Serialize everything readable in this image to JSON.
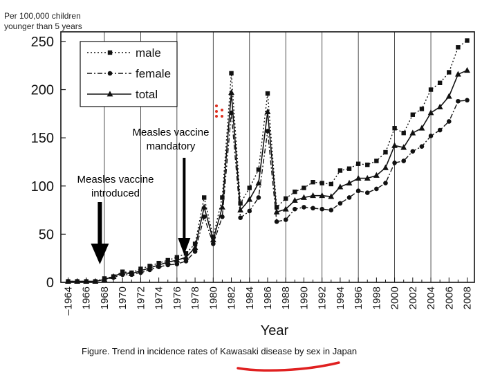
{
  "page": {
    "y_units_label": "Per 100,000 children\nyounger than 5 years",
    "caption": "Figure.   Trend in incidence rates of Kawasaki disease by sex in Japan",
    "annotations": [
      {
        "id": "mandatory",
        "text": "Measles vaccine\nmandatory",
        "arrow_year": 1976.8
      },
      {
        "id": "introduced",
        "text": "Measles vaccine\nintroduced",
        "arrow_year": 1967.5
      }
    ],
    "accent_color": "#e03020"
  },
  "chart_data": {
    "type": "line",
    "title": "",
    "xlabel": "Year",
    "ylabel": "Per 100,000 children younger than 5 years",
    "xlim": [
      1963.2,
      2008.8
    ],
    "ylim": [
      0,
      260
    ],
    "yticks": [
      0,
      50,
      100,
      150,
      200,
      250
    ],
    "xtick_labels": [
      "1964",
      "1966",
      "1968",
      "1970",
      "1972",
      "1974",
      "1976",
      "1978",
      "1980",
      "1982",
      "1984",
      "1986",
      "1988",
      "1990",
      "1992",
      "1994",
      "1996",
      "1998",
      "2000",
      "2002",
      "2004",
      "2006",
      "2008"
    ],
    "legend": "top-left",
    "x": [
      1964,
      1965,
      1966,
      1967,
      1968,
      1969,
      1970,
      1971,
      1972,
      1973,
      1974,
      1975,
      1976,
      1977,
      1978,
      1979,
      1980,
      1981,
      1982,
      1983,
      1984,
      1985,
      1986,
      1987,
      1988,
      1989,
      1990,
      1991,
      1992,
      1993,
      1994,
      1995,
      1996,
      1997,
      1998,
      1999,
      2000,
      2001,
      2002,
      2003,
      2004,
      2005,
      2006,
      2007,
      2008
    ],
    "series": [
      {
        "name": "male",
        "style": "dotted",
        "marker": "square",
        "values": [
          1,
          1,
          1,
          1,
          4,
          6,
          11,
          10,
          14,
          17,
          20,
          23,
          26,
          30,
          40,
          88,
          47,
          88,
          217,
          82,
          98,
          117,
          196,
          78,
          87,
          94,
          98,
          104,
          103,
          102,
          116,
          118,
          123,
          122,
          126,
          135,
          160,
          155,
          174,
          180,
          200,
          207,
          218,
          244,
          251
        ]
      },
      {
        "name": "female",
        "style": "dashdot",
        "marker": "circle",
        "values": [
          1,
          1,
          1,
          1,
          3,
          5,
          8,
          8,
          10,
          13,
          16,
          18,
          19,
          22,
          32,
          68,
          40,
          68,
          176,
          67,
          74,
          88,
          157,
          63,
          65,
          76,
          78,
          77,
          76,
          75,
          82,
          88,
          95,
          93,
          97,
          103,
          124,
          126,
          136,
          141,
          152,
          158,
          167,
          188,
          189
        ]
      },
      {
        "name": "total",
        "style": "solid",
        "marker": "triangle",
        "values": [
          1,
          1,
          1,
          1,
          3,
          6,
          10,
          9,
          12,
          15,
          18,
          21,
          23,
          26,
          36,
          78,
          44,
          78,
          197,
          75,
          86,
          103,
          177,
          73,
          76,
          85,
          88,
          90,
          90,
          89,
          99,
          103,
          108,
          108,
          111,
          119,
          142,
          140,
          155,
          160,
          176,
          182,
          193,
          216,
          220
        ]
      }
    ]
  }
}
